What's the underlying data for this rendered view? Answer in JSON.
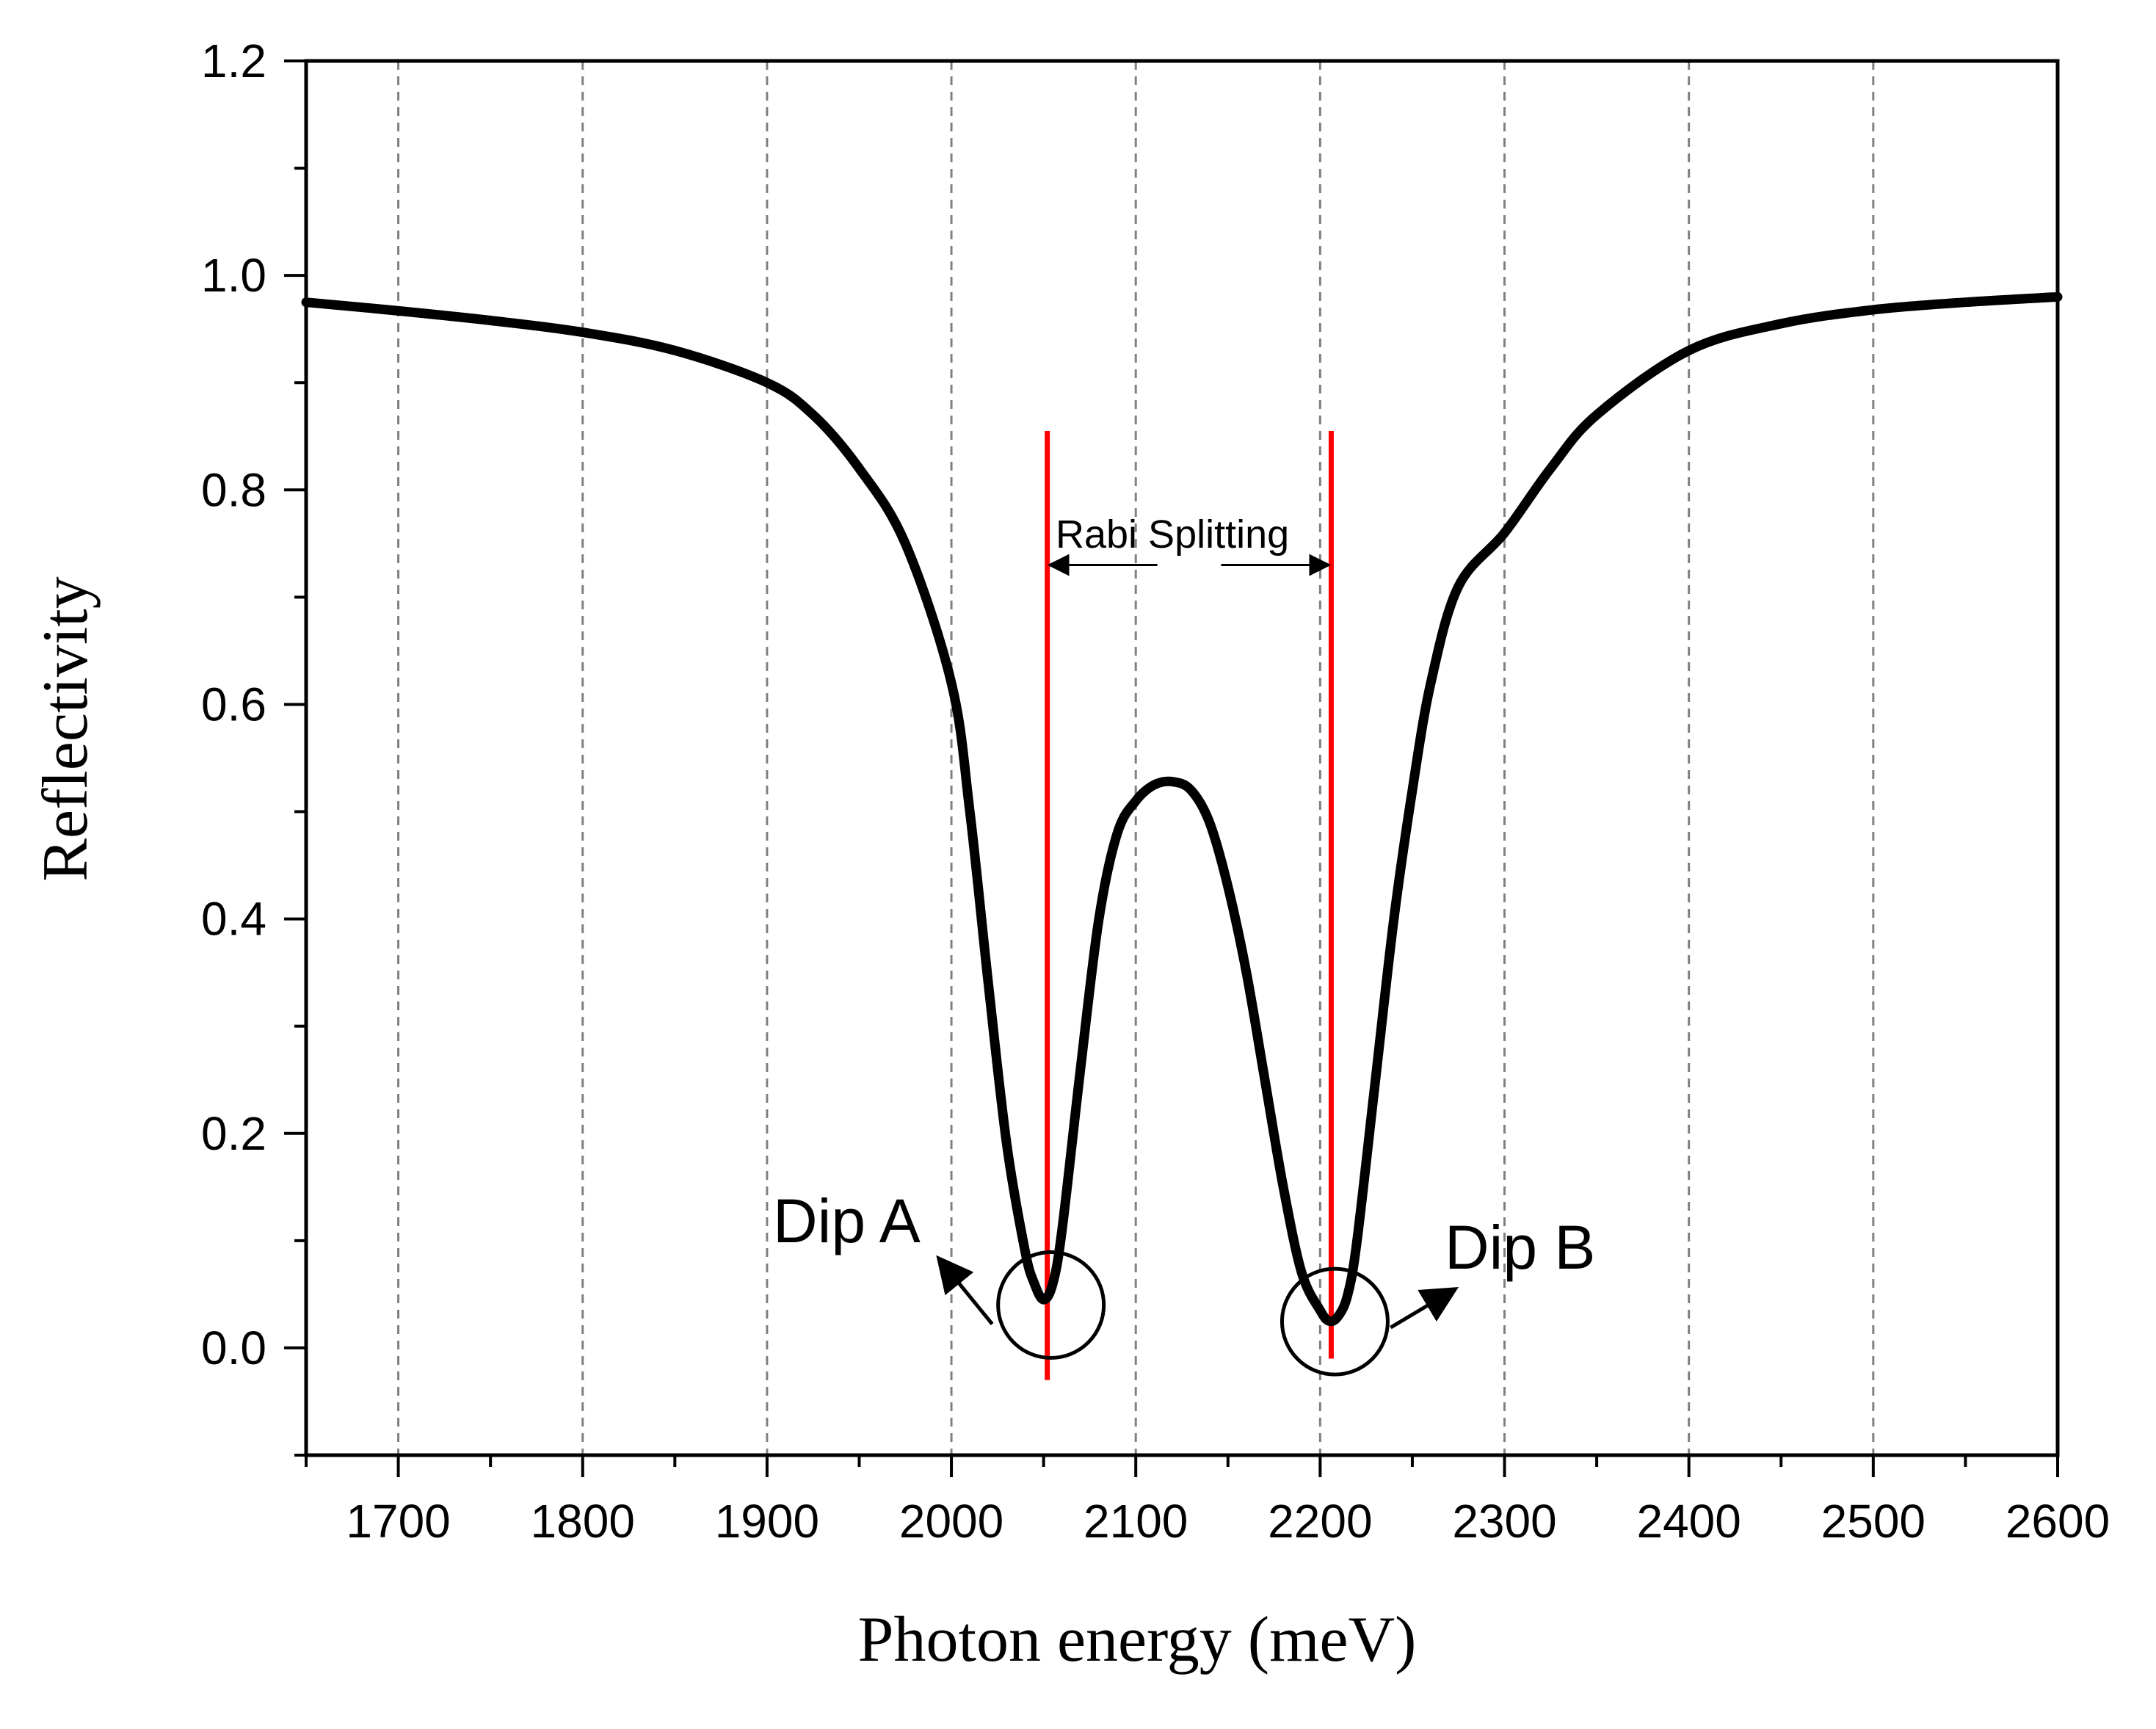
{
  "colors": {
    "curve": "#000000",
    "markers": "#ff0000",
    "grid": "#808080",
    "axis": "#000000",
    "background": "#ffffff"
  },
  "chart_data": {
    "type": "line",
    "title": "",
    "xlabel": "Photon energy (meV)",
    "ylabel": "Reflectivity",
    "xlim": [
      1650,
      2600
    ],
    "ylim": [
      -0.1,
      1.2
    ],
    "xticks": [
      1700,
      1800,
      1900,
      2000,
      2100,
      2200,
      2300,
      2400,
      2500,
      2600
    ],
    "xtick_labels": [
      "1700",
      "1800",
      "1900",
      "2000",
      "2100",
      "2200",
      "2300",
      "2400",
      "2500",
      "2600"
    ],
    "yticks": [
      0.0,
      0.2,
      0.4,
      0.6,
      0.8,
      1.0,
      1.2
    ],
    "ytick_labels": [
      "0.0",
      "0.2",
      "0.4",
      "0.6",
      "0.8",
      "1.0",
      "1.2"
    ],
    "grid": "vertical dashed at major x ticks",
    "series": [
      {
        "name": "Reflectivity",
        "x": [
          1650,
          1700,
          1750,
          1800,
          1850,
          1900,
          1925,
          1950,
          1975,
          2000,
          2010,
          2020,
          2030,
          2040,
          2045,
          2050,
          2055,
          2060,
          2070,
          2080,
          2090,
          2100,
          2110,
          2120,
          2130,
          2140,
          2150,
          2160,
          2170,
          2180,
          2190,
          2200,
          2205,
          2210,
          2215,
          2220,
          2230,
          2240,
          2250,
          2260,
          2275,
          2300,
          2325,
          2350,
          2400,
          2450,
          2500,
          2550,
          2600
        ],
        "y": [
          0.975,
          0.967,
          0.958,
          0.947,
          0.93,
          0.9,
          0.87,
          0.82,
          0.75,
          0.62,
          0.5,
          0.34,
          0.19,
          0.09,
          0.06,
          0.045,
          0.06,
          0.11,
          0.26,
          0.4,
          0.48,
          0.51,
          0.525,
          0.528,
          0.52,
          0.49,
          0.43,
          0.35,
          0.25,
          0.15,
          0.07,
          0.035,
          0.025,
          0.03,
          0.05,
          0.1,
          0.25,
          0.4,
          0.52,
          0.62,
          0.71,
          0.76,
          0.82,
          0.87,
          0.93,
          0.955,
          0.968,
          0.975,
          0.98
        ]
      }
    ],
    "vertical_markers": [
      {
        "name": "Dip A line",
        "x": 2052,
        "y_from": -0.03,
        "y_to": 0.855
      },
      {
        "name": "Dip B line",
        "x": 2206,
        "y_from": -0.01,
        "y_to": 0.855
      }
    ],
    "annotations": {
      "rabi_label": "Rabi Splitting",
      "dip_a_label": "Dip A",
      "dip_b_label": "Dip B",
      "rabi_arrow": {
        "x_from": 2052,
        "x_to": 2206,
        "y": 0.73
      },
      "dip_a_circle": {
        "x": 2052,
        "y": 0.04
      },
      "dip_b_circle": {
        "x": 2206,
        "y": 0.03
      }
    }
  }
}
